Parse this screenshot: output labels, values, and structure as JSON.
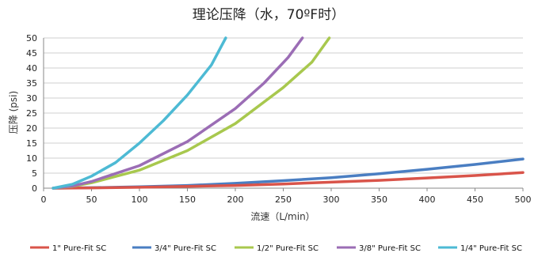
{
  "chart_data": {
    "type": "line",
    "title": "理论压降（水，70ºF时）",
    "xlabel": "流速（L/min）",
    "ylabel": "压降 (psi)",
    "xlim": [
      0,
      500
    ],
    "ylim": [
      0,
      50
    ],
    "xticks": [
      0,
      50,
      100,
      150,
      200,
      250,
      300,
      350,
      400,
      450,
      500
    ],
    "yticks": [
      0,
      5,
      10,
      15,
      20,
      25,
      30,
      35,
      40,
      45,
      50
    ],
    "grid": "horizontal",
    "legend_position": "bottom",
    "series": [
      {
        "name": "1\" Pure-Fit SC",
        "color": "#d9544a",
        "x": [
          10,
          50,
          100,
          150,
          200,
          250,
          300,
          350,
          400,
          450,
          500
        ],
        "y": [
          0,
          0.1,
          0.3,
          0.6,
          0.9,
          1.4,
          2.0,
          2.6,
          3.4,
          4.2,
          5.2
        ]
      },
      {
        "name": "3/4\" Pure-Fit SC",
        "color": "#4a7ec2",
        "x": [
          10,
          50,
          100,
          150,
          200,
          250,
          300,
          350,
          400,
          450,
          500
        ],
        "y": [
          0,
          0.15,
          0.45,
          0.9,
          1.6,
          2.5,
          3.5,
          4.8,
          6.3,
          7.9,
          9.7
        ]
      },
      {
        "name": "1/2\" Pure-Fit SC",
        "color": "#a8c84e",
        "x": [
          10,
          30,
          50,
          100,
          150,
          200,
          250,
          280,
          298
        ],
        "y": [
          0,
          0.6,
          1.8,
          6.0,
          12.5,
          21.5,
          33.5,
          42.0,
          50.0
        ]
      },
      {
        "name": "3/8\" Pure-Fit SC",
        "color": "#9b6db5",
        "x": [
          10,
          30,
          50,
          100,
          150,
          200,
          230,
          255,
          270
        ],
        "y": [
          0,
          0.7,
          2.2,
          7.5,
          15.5,
          26.5,
          35.0,
          43.5,
          50.0
        ]
      },
      {
        "name": "1/4\" Pure-Fit SC",
        "color": "#4dbad4",
        "x": [
          10,
          30,
          50,
          75,
          100,
          125,
          150,
          175,
          190
        ],
        "y": [
          0,
          1.3,
          4.0,
          8.5,
          15.0,
          22.5,
          31.0,
          41.0,
          50.0
        ]
      }
    ]
  }
}
